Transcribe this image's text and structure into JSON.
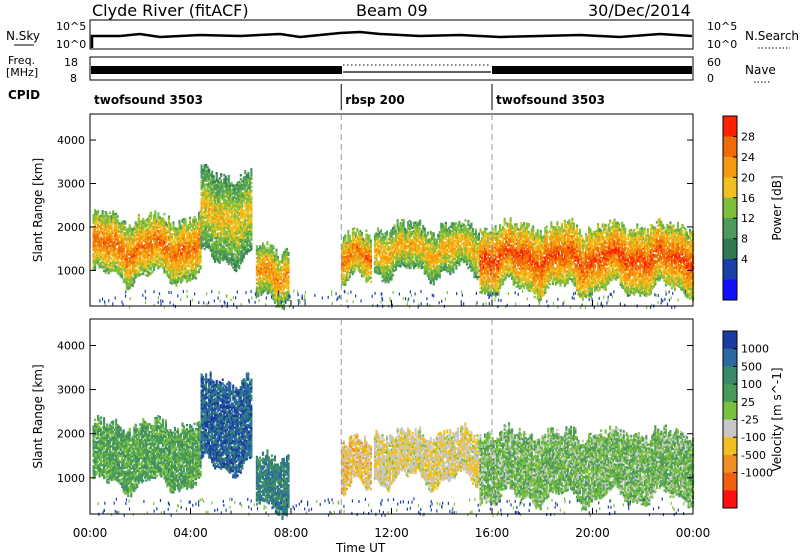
{
  "header": {
    "station": "Clyde River (fitACF)",
    "beam": "Beam 09",
    "date": "30/Dec/2014"
  },
  "noise_panel": {
    "left_label": "N.Sky",
    "right_label": "N.Search",
    "tick_top": "10^5",
    "tick_bottom": "10^0"
  },
  "freq_panel": {
    "left_label_top": "Freq.",
    "left_label_unit": "[MHz]",
    "left_tick_top": "18",
    "left_tick_bottom": "8",
    "right_label": "Nave",
    "right_tick_top": "60",
    "right_tick_bottom": "0"
  },
  "cpid": {
    "label": "CPID",
    "segments": [
      {
        "name": "twofsound 3503",
        "start": 0,
        "end": 10
      },
      {
        "name": "rbsp 200",
        "start": 10,
        "end": 16
      },
      {
        "name": "twofsound 3503",
        "start": 16,
        "end": 24
      }
    ]
  },
  "colors": {
    "power": [
      "#1010ff",
      "#1a3fa8",
      "#2f7a52",
      "#4c9a5c",
      "#7fbe3a",
      "#f0c020",
      "#f59a10",
      "#f06a08",
      "#ff2000"
    ],
    "velocity": [
      "#1a3aa0",
      "#2a6aa0",
      "#3a8a6a",
      "#4a9a5a",
      "#7ac040",
      "#c8c8c8",
      "#f0c020",
      "#f09020",
      "#f06010",
      "#ff1010"
    ]
  },
  "chart_data": [
    {
      "type": "heatmap",
      "panel": "power",
      "ylabel": "Slant Range [km]",
      "yticks": [
        1000,
        2000,
        3000,
        4000
      ],
      "ylim": [
        180,
        4600
      ],
      "xlim": [
        0,
        24
      ],
      "colorbar": {
        "label": "Power [dB]",
        "ticks": [
          "28",
          "24",
          "20",
          "16",
          "12",
          "8",
          "4"
        ],
        "range": [
          0,
          30
        ]
      },
      "vertical_markers_hours": [
        10,
        16
      ],
      "echo_regions": [
        {
          "start": 0.1,
          "end": 4.4,
          "range_low": 800,
          "range_high": 2300,
          "level": 24
        },
        {
          "start": 4.4,
          "end": 6.4,
          "range_low": 1200,
          "range_high": 3300,
          "level": 18
        },
        {
          "start": 6.6,
          "end": 7.9,
          "range_low": 300,
          "range_high": 1600,
          "level": 22
        },
        {
          "start": 10.0,
          "end": 11.2,
          "range_low": 700,
          "range_high": 1900,
          "level": 24
        },
        {
          "start": 11.3,
          "end": 15.5,
          "range_low": 900,
          "range_high": 2100,
          "level": 20
        },
        {
          "start": 15.5,
          "end": 24.0,
          "range_low": 500,
          "range_high": 2100,
          "level": 26
        }
      ]
    },
    {
      "type": "heatmap",
      "panel": "velocity",
      "ylabel": "Slant Range [km]",
      "xlabel": "Time UT",
      "yticks": [
        1000,
        2000,
        3000,
        4000
      ],
      "ylim": [
        180,
        4600
      ],
      "xlim": [
        0,
        24
      ],
      "xticks": [
        "00:00",
        "04:00",
        "08:00",
        "12:00",
        "16:00",
        "20:00",
        "00:00"
      ],
      "colorbar": {
        "label": "Velocity [m s^-1]",
        "ticks": [
          "1000",
          "500",
          "100",
          "25",
          "-25",
          "-100",
          "-500",
          "-1000"
        ],
        "range": [
          -1000,
          1000
        ]
      },
      "vertical_markers_hours": [
        10,
        16
      ],
      "echo_regions": [
        {
          "start": 0.1,
          "end": 4.4,
          "range_low": 800,
          "range_high": 2300,
          "level": 300
        },
        {
          "start": 4.4,
          "end": 6.4,
          "range_low": 1200,
          "range_high": 3300,
          "level": 800
        },
        {
          "start": 6.6,
          "end": 7.9,
          "range_low": 300,
          "range_high": 1600,
          "level": 600
        },
        {
          "start": 10.0,
          "end": 11.2,
          "range_low": 700,
          "range_high": 1900,
          "level": -300
        },
        {
          "start": 11.3,
          "end": 15.5,
          "range_low": 900,
          "range_high": 2100,
          "level": -200
        },
        {
          "start": 15.5,
          "end": 24.0,
          "range_low": 500,
          "range_high": 2100,
          "level": 150
        }
      ]
    }
  ]
}
